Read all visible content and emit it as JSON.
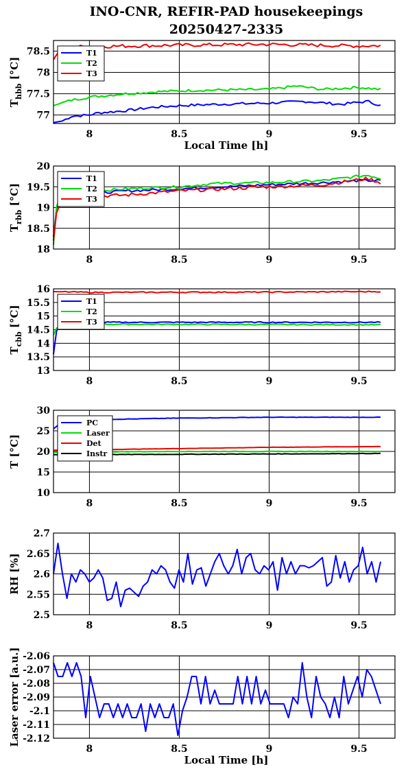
{
  "title_line1": "INO-CNR, REFIR-PAD housekeepings",
  "title_line2": "20250427-2335",
  "chart_data": [
    {
      "type": "line",
      "ylabel_main": "T",
      "ylabel_sub": "hbb",
      "ylabel_unit": "[°C]",
      "xlabel": "Local Time [h]",
      "xlim": [
        7.8,
        9.7
      ],
      "ylim": [
        76.8,
        78.75
      ],
      "xticks": [
        8,
        8.5,
        9,
        9.5
      ],
      "xtick_labels": [
        "8",
        "8.5",
        "9",
        "9.5"
      ],
      "yticks": [
        77,
        77.5,
        78,
        78.5
      ],
      "ytick_labels": [
        "77",
        "77.5",
        "78",
        "78.5"
      ],
      "x_start": 7.8,
      "x_end": 9.62,
      "series": [
        {
          "name": "T1",
          "color": "#0000ff",
          "anchors": [
            [
              7.8,
              76.82
            ],
            [
              7.85,
              76.86
            ],
            [
              7.9,
              76.97
            ],
            [
              8.0,
              77.0
            ],
            [
              8.05,
              77.05
            ],
            [
              8.2,
              77.1
            ],
            [
              8.35,
              77.18
            ],
            [
              8.5,
              77.22
            ],
            [
              8.7,
              77.25
            ],
            [
              9.0,
              77.28
            ],
            [
              9.2,
              77.32
            ],
            [
              9.4,
              77.25
            ],
            [
              9.5,
              77.3
            ],
            [
              9.55,
              77.32
            ],
            [
              9.62,
              77.22
            ]
          ],
          "noise": 0.03
        },
        {
          "name": "T2",
          "color": "#00dd00",
          "anchors": [
            [
              7.8,
              77.22
            ],
            [
              7.9,
              77.35
            ],
            [
              8.0,
              77.42
            ],
            [
              8.2,
              77.5
            ],
            [
              8.4,
              77.55
            ],
            [
              8.6,
              77.58
            ],
            [
              9.0,
              77.6
            ],
            [
              9.15,
              77.68
            ],
            [
              9.3,
              77.6
            ],
            [
              9.5,
              77.65
            ],
            [
              9.62,
              77.6
            ]
          ],
          "noise": 0.03
        },
        {
          "name": "T3",
          "color": "#ee0000",
          "anchors": [
            [
              7.8,
              78.3
            ],
            [
              7.83,
              78.5
            ],
            [
              7.9,
              78.6
            ],
            [
              8.2,
              78.62
            ],
            [
              8.5,
              78.64
            ],
            [
              9.0,
              78.66
            ],
            [
              9.5,
              78.62
            ],
            [
              9.62,
              78.63
            ]
          ],
          "noise": 0.04
        }
      ],
      "legend": [
        "T1",
        "T2",
        "T3"
      ],
      "legend_position": "top-left"
    },
    {
      "type": "line",
      "ylabel_main": "T",
      "ylabel_sub": "rbb",
      "ylabel_unit": "[°C]",
      "xlim": [
        7.8,
        9.7
      ],
      "ylim": [
        18,
        20
      ],
      "xticks": [
        8,
        8.5,
        9,
        9.5
      ],
      "xtick_labels": [
        "8",
        "8.5",
        "9",
        "9.5"
      ],
      "yticks": [
        18,
        18.5,
        19,
        19.5,
        20
      ],
      "ytick_labels": [
        "18",
        "18.5",
        "19",
        "19.5",
        "20"
      ],
      "x_start": 7.8,
      "x_end": 9.62,
      "series": [
        {
          "name": "T1",
          "color": "#0000ff",
          "anchors": [
            [
              7.8,
              18.3
            ],
            [
              7.82,
              19.1
            ],
            [
              7.9,
              19.3
            ],
            [
              8.2,
              19.4
            ],
            [
              8.5,
              19.45
            ],
            [
              9.0,
              19.55
            ],
            [
              9.3,
              19.6
            ],
            [
              9.5,
              19.65
            ],
            [
              9.62,
              19.65
            ]
          ],
          "noise": 0.03
        },
        {
          "name": "T2",
          "color": "#00dd00",
          "anchors": [
            [
              7.8,
              18.1
            ],
            [
              7.82,
              19.2
            ],
            [
              7.9,
              19.35
            ],
            [
              8.2,
              19.45
            ],
            [
              8.5,
              19.5
            ],
            [
              8.7,
              19.58
            ],
            [
              9.0,
              19.6
            ],
            [
              9.3,
              19.65
            ],
            [
              9.55,
              19.78
            ],
            [
              9.62,
              19.7
            ]
          ],
          "noise": 0.03
        },
        {
          "name": "T3",
          "color": "#ee0000",
          "anchors": [
            [
              7.8,
              18.2
            ],
            [
              7.82,
              19.0
            ],
            [
              7.9,
              19.25
            ],
            [
              8.2,
              19.3
            ],
            [
              8.5,
              19.4
            ],
            [
              9.0,
              19.5
            ],
            [
              9.3,
              19.55
            ],
            [
              9.55,
              19.7
            ],
            [
              9.62,
              19.6
            ]
          ],
          "noise": 0.04
        }
      ],
      "legend": [
        "T1",
        "T2",
        "T3"
      ],
      "legend_position": "top-left"
    },
    {
      "type": "line",
      "ylabel_main": "T",
      "ylabel_sub": "cbb",
      "ylabel_unit": "[°C]",
      "xlim": [
        7.8,
        9.7
      ],
      "ylim": [
        13,
        16
      ],
      "xticks": [
        8,
        8.5,
        9,
        9.5
      ],
      "xtick_labels": [
        "8",
        "8.5",
        "9",
        "9.5"
      ],
      "yticks": [
        13,
        13.5,
        14,
        14.5,
        15,
        15.5,
        16
      ],
      "ytick_labels": [
        "13",
        "13.5",
        "14",
        "14.5",
        "15",
        "15.5",
        "16"
      ],
      "x_start": 7.8,
      "x_end": 9.62,
      "series": [
        {
          "name": "T1",
          "color": "#0000ff",
          "anchors": [
            [
              7.8,
              13.6
            ],
            [
              7.82,
              14.6
            ],
            [
              7.85,
              14.75
            ],
            [
              8.0,
              14.77
            ],
            [
              9.62,
              14.77
            ]
          ],
          "noise": 0.02
        },
        {
          "name": "T2",
          "color": "#00dd00",
          "anchors": [
            [
              7.8,
              14.3
            ],
            [
              7.82,
              14.6
            ],
            [
              7.85,
              14.7
            ],
            [
              8.0,
              14.7
            ],
            [
              9.62,
              14.68
            ]
          ],
          "noise": 0.02
        },
        {
          "name": "T3",
          "color": "#ee0000",
          "anchors": [
            [
              7.8,
              15.9
            ],
            [
              8.0,
              15.87
            ],
            [
              9.0,
              15.88
            ],
            [
              9.62,
              15.9
            ]
          ],
          "noise": 0.02
        }
      ],
      "legend": [
        "T1",
        "T2",
        "T3"
      ],
      "legend_position": "top-left"
    },
    {
      "type": "line",
      "ylabel_main": "T [°C]",
      "ylabel_sub": "",
      "ylabel_unit": "",
      "xlim": [
        7.8,
        9.7
      ],
      "ylim": [
        10,
        30
      ],
      "xticks": [
        8,
        8.5,
        9,
        9.5
      ],
      "xtick_labels": [
        "8",
        "8.5",
        "9",
        "9.5"
      ],
      "yticks": [
        10,
        15,
        20,
        25,
        30
      ],
      "ytick_labels": [
        "10",
        "15",
        "20",
        "25",
        "30"
      ],
      "x_start": 7.8,
      "x_end": 9.62,
      "series": [
        {
          "name": "PC",
          "color": "#0000ff",
          "anchors": [
            [
              7.8,
              25.5
            ],
            [
              7.85,
              27.2
            ],
            [
              8.0,
              27.7
            ],
            [
              8.5,
              28.1
            ],
            [
              9.0,
              28.3
            ],
            [
              9.62,
              28.3
            ]
          ],
          "noise": 0.05
        },
        {
          "name": "Laser",
          "color": "#00dd00",
          "anchors": [
            [
              7.8,
              19.8
            ],
            [
              8.5,
              20.0
            ],
            [
              9.62,
              20.0
            ]
          ],
          "noise": 0.05
        },
        {
          "name": "Det",
          "color": "#ee0000",
          "anchors": [
            [
              7.8,
              20.3
            ],
            [
              8.5,
              20.7
            ],
            [
              9.0,
              21.0
            ],
            [
              9.62,
              21.2
            ]
          ],
          "noise": 0.03
        },
        {
          "name": "Instr",
          "color": "#000000",
          "anchors": [
            [
              7.8,
              19.2
            ],
            [
              8.5,
              19.3
            ],
            [
              9.62,
              19.5
            ]
          ],
          "noise": 0.05
        }
      ],
      "legend": [
        "PC",
        "Laser",
        "Det",
        "Instr"
      ],
      "legend_position": "top-left"
    },
    {
      "type": "line",
      "ylabel_main": "RH [%]",
      "ylabel_sub": "",
      "ylabel_unit": "",
      "xlim": [
        7.8,
        9.7
      ],
      "ylim": [
        2.5,
        2.7
      ],
      "xticks": [
        8,
        8.5,
        9,
        9.5
      ],
      "xtick_labels": [
        "8",
        "8.5",
        "9",
        "9.5"
      ],
      "yticks": [
        2.5,
        2.55,
        2.6,
        2.65,
        2.7
      ],
      "ytick_labels": [
        "2.5",
        "2.55",
        "2.6",
        "2.65",
        "2.7"
      ],
      "x_start": 7.8,
      "x_end": 9.62,
      "series": [
        {
          "name": "",
          "color": "#0000ff",
          "values": [
            2.6,
            2.675,
            2.6,
            2.54,
            2.6,
            2.58,
            2.61,
            2.6,
            2.58,
            2.59,
            2.61,
            2.59,
            2.535,
            2.54,
            2.58,
            2.52,
            2.56,
            2.565,
            2.555,
            2.545,
            2.57,
            2.58,
            2.61,
            2.6,
            2.62,
            2.61,
            2.58,
            2.565,
            2.61,
            2.58,
            2.65,
            2.575,
            2.61,
            2.615,
            2.57,
            2.6,
            2.63,
            2.65,
            2.62,
            2.6,
            2.62,
            2.66,
            2.6,
            2.64,
            2.65,
            2.61,
            2.6,
            2.62,
            2.61,
            2.63,
            2.56,
            2.64,
            2.6,
            2.63,
            2.6,
            2.62,
            2.62,
            2.615,
            2.62,
            2.63,
            2.64,
            2.57,
            2.58,
            2.645,
            2.59,
            2.63,
            2.58,
            2.61,
            2.62,
            2.665,
            2.6,
            2.63,
            2.58,
            2.63
          ]
        }
      ]
    },
    {
      "type": "line",
      "ylabel_main": "Laser error [a.u.]",
      "ylabel_sub": "",
      "ylabel_unit": "",
      "xlabel": "Local Time [h]",
      "xlim": [
        7.8,
        9.7
      ],
      "ylim": [
        -2.12,
        -2.06
      ],
      "xticks": [
        8,
        8.5,
        9,
        9.5
      ],
      "xtick_labels": [
        "8",
        "8.5",
        "9",
        "9.5"
      ],
      "yticks": [
        -2.12,
        -2.11,
        -2.1,
        -2.09,
        -2.08,
        -2.07,
        -2.06
      ],
      "ytick_labels": [
        "-2.12",
        "-2.11",
        "-2.1",
        "-2.09",
        "-2.08",
        "-2.07",
        "-2.06"
      ],
      "x_start": 7.8,
      "x_end": 9.62,
      "series": [
        {
          "name": "",
          "color": "#0000ff",
          "values": [
            -2.065,
            -2.075,
            -2.075,
            -2.065,
            -2.075,
            -2.065,
            -2.075,
            -2.105,
            -2.075,
            -2.09,
            -2.105,
            -2.095,
            -2.095,
            -2.105,
            -2.095,
            -2.105,
            -2.095,
            -2.105,
            -2.105,
            -2.095,
            -2.115,
            -2.095,
            -2.105,
            -2.095,
            -2.105,
            -2.105,
            -2.095,
            -2.118,
            -2.1,
            -2.09,
            -2.075,
            -2.075,
            -2.095,
            -2.075,
            -2.095,
            -2.085,
            -2.095,
            -2.095,
            -2.095,
            -2.095,
            -2.075,
            -2.095,
            -2.075,
            -2.095,
            -2.075,
            -2.095,
            -2.085,
            -2.095,
            -2.095,
            -2.095,
            -2.095,
            -2.105,
            -2.09,
            -2.095,
            -2.065,
            -2.09,
            -2.105,
            -2.075,
            -2.09,
            -2.095,
            -2.105,
            -2.09,
            -2.105,
            -2.075,
            -2.095,
            -2.085,
            -2.075,
            -2.09,
            -2.07,
            -2.075,
            -2.085,
            -2.095
          ]
        }
      ]
    }
  ]
}
